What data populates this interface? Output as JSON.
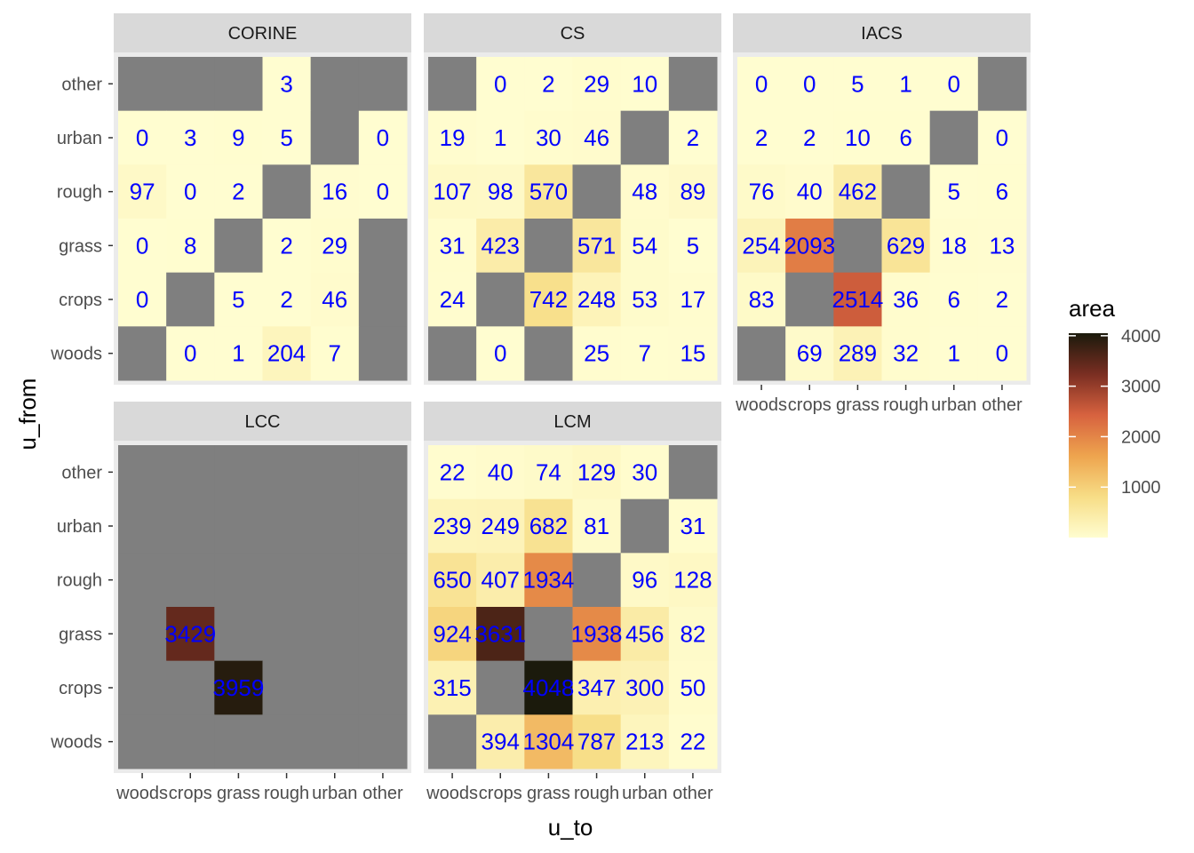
{
  "chart_data": {
    "type": "heatmap",
    "xlabel": "u_to",
    "ylabel": "u_from",
    "x_categories": [
      "woods",
      "crops",
      "grass",
      "rough",
      "urban",
      "other"
    ],
    "y_categories": [
      "woods",
      "crops",
      "grass",
      "rough",
      "urban",
      "other"
    ],
    "legend": {
      "title": "area",
      "placement": "right",
      "ticks": [
        1000,
        2000,
        3000,
        4000
      ],
      "range": [
        0,
        4050
      ],
      "colors": [
        "#fffdd0",
        "#f7dd86",
        "#eea44e",
        "#d7623f",
        "#7a2e22",
        "#1b1a0c"
      ]
    },
    "na_color": "#7f7f7f",
    "panel_background": "#ebebeb",
    "strip_background": "#d9d9d9",
    "label_color": "#0000ff",
    "panels": [
      {
        "title": "CORINE",
        "cells": [
          [
            null,
            null,
            null,
            3,
            null,
            null
          ],
          [
            0,
            3,
            9,
            5,
            null,
            0
          ],
          [
            97,
            0,
            2,
            null,
            16,
            0
          ],
          [
            0,
            8,
            null,
            2,
            29,
            null
          ],
          [
            0,
            null,
            5,
            2,
            46,
            null
          ],
          [
            null,
            0,
            1,
            204,
            7,
            null
          ]
        ]
      },
      {
        "title": "CS",
        "cells": [
          [
            null,
            0,
            2,
            29,
            10,
            null
          ],
          [
            19,
            1,
            30,
            46,
            null,
            2
          ],
          [
            107,
            98,
            570,
            null,
            48,
            89
          ],
          [
            31,
            423,
            null,
            571,
            54,
            5
          ],
          [
            24,
            null,
            742,
            248,
            53,
            17
          ],
          [
            null,
            0,
            null,
            25,
            7,
            15
          ]
        ]
      },
      {
        "title": "IACS",
        "cells": [
          [
            0,
            0,
            5,
            1,
            0,
            null
          ],
          [
            2,
            2,
            10,
            6,
            null,
            0
          ],
          [
            76,
            40,
            462,
            null,
            5,
            6
          ],
          [
            254,
            2093,
            null,
            629,
            18,
            13
          ],
          [
            83,
            null,
            2514,
            36,
            6,
            2
          ],
          [
            null,
            69,
            289,
            32,
            1,
            0
          ]
        ]
      },
      {
        "title": "LCC",
        "cells": [
          [
            null,
            null,
            null,
            null,
            null,
            null
          ],
          [
            null,
            null,
            null,
            null,
            null,
            null
          ],
          [
            null,
            null,
            null,
            null,
            null,
            null
          ],
          [
            null,
            3429,
            null,
            null,
            null,
            null
          ],
          [
            null,
            null,
            3959,
            null,
            null,
            null
          ],
          [
            null,
            null,
            null,
            null,
            null,
            null
          ]
        ]
      },
      {
        "title": "LCM",
        "cells": [
          [
            22,
            40,
            74,
            129,
            30,
            null
          ],
          [
            239,
            249,
            682,
            81,
            null,
            31
          ],
          [
            650,
            407,
            1934,
            null,
            96,
            128
          ],
          [
            924,
            3631,
            null,
            1938,
            456,
            82
          ],
          [
            315,
            null,
            4048,
            347,
            300,
            50
          ],
          [
            null,
            394,
            1304,
            787,
            213,
            22
          ]
        ]
      }
    ]
  }
}
